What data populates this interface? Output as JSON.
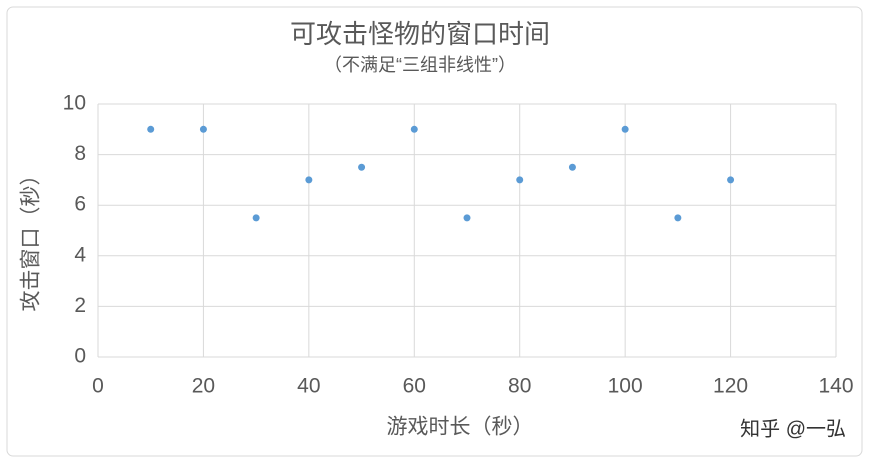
{
  "chart_data": {
    "type": "scatter",
    "title": "可攻击怪物的窗口时间",
    "subtitle": "（不满足“三组非线性”）",
    "x_label": "游戏时长（秒）",
    "y_label": "攻击窗口（秒）",
    "x": [
      10,
      20,
      30,
      40,
      50,
      60,
      70,
      80,
      90,
      100,
      110,
      120
    ],
    "values": [
      9,
      9,
      5.5,
      7,
      7.5,
      9,
      5.5,
      7,
      7.5,
      9,
      5.5,
      7
    ],
    "color": "#5b9bd5",
    "xlim": [
      0,
      140
    ],
    "xticks": [
      0,
      20,
      40,
      60,
      80,
      100,
      120,
      140
    ],
    "ylim": [
      0,
      10
    ],
    "yticks": [
      0,
      2,
      4,
      6,
      8,
      10
    ],
    "grid": true,
    "watermark": "知乎 @一弘"
  }
}
